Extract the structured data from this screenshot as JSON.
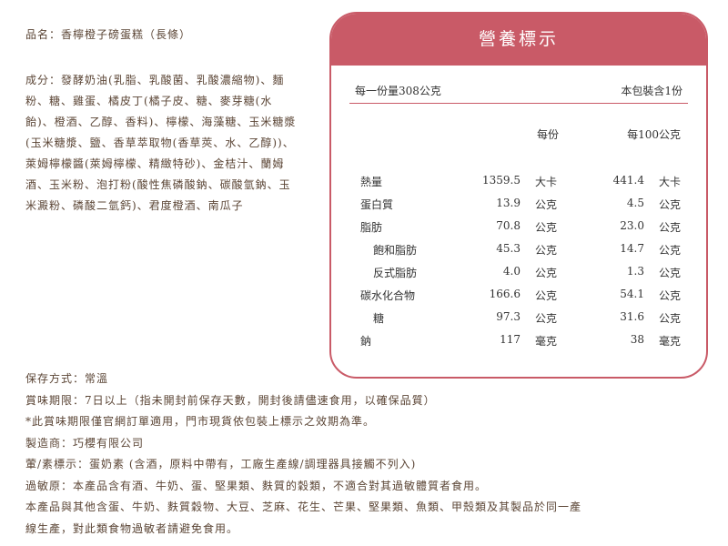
{
  "product_name": "品名：香檸橙子磅蛋糕（長條）",
  "ingredients": "成分：發酵奶油(乳脂、乳酸菌、乳酸濃縮物)、麵粉、糖、雞蛋、橘皮丁(橘子皮、糖、麥芽糖(水飴)、橙酒、乙醇、香料)、檸檬、海藻糖、玉米糖漿(玉米糖漿、鹽、香草萃取物(香草莢、水、乙醇))、萊姆檸檬醬(萊姆檸檬、精緻特砂)、金桔汁、蘭姆酒、玉米粉、泡打粉(酸性焦磷酸鈉、碳酸氫鈉、玉米澱粉、磷酸二氫鈣)、君度橙酒、南瓜子",
  "nutrition": {
    "title": "營養標示",
    "serving_size": "每一份量308公克",
    "servings": "本包裝含1份",
    "col_per_serving": "每份",
    "col_per_100g": "每100公克",
    "accent_color": "#c95a67",
    "rows": [
      {
        "name": "熱量",
        "v1": "1359.5",
        "u1": "大卡",
        "v2": "441.4",
        "u2": "大卡",
        "indent": false
      },
      {
        "name": "蛋白質",
        "v1": "13.9",
        "u1": "公克",
        "v2": "4.5",
        "u2": "公克",
        "indent": false
      },
      {
        "name": "脂肪",
        "v1": "70.8",
        "u1": "公克",
        "v2": "23.0",
        "u2": "公克",
        "indent": false
      },
      {
        "name": "飽和脂肪",
        "v1": "45.3",
        "u1": "公克",
        "v2": "14.7",
        "u2": "公克",
        "indent": true
      },
      {
        "name": "反式脂肪",
        "v1": "4.0",
        "u1": "公克",
        "v2": "1.3",
        "u2": "公克",
        "indent": true
      },
      {
        "name": "碳水化合物",
        "v1": "166.6",
        "u1": "公克",
        "v2": "54.1",
        "u2": "公克",
        "indent": false
      },
      {
        "name": "糖",
        "v1": "97.3",
        "u1": "公克",
        "v2": "31.6",
        "u2": "公克",
        "indent": true
      },
      {
        "name": "鈉",
        "v1": "117",
        "u1": "毫克",
        "v2": "38",
        "u2": "毫克",
        "indent": false
      }
    ]
  },
  "footer": [
    "保存方式：常溫",
    "賞味期限：7日以上（指未開封前保存天數，開封後請儘速食用，以確保品質）",
    "*此賞味期限僅官網訂單適用，門市現貨依包裝上標示之效期為準。",
    "製造商：巧櫻有限公司",
    "葷/素標示：蛋奶素 (含酒，原料中帶有，工廠生產線/調理器具接觸不列入)",
    "過敏原：本產品含有酒、牛奶、蛋、堅果類、麩質的穀類，不適合對其過敏體質者食用。",
    "本產品與其他含蛋、牛奶、麩質穀物、大豆、芝麻、花生、芒果、堅果類、魚類、甲殼類及其製品於同一產",
    "線生產，對此類食物過敏者請避免食用。"
  ]
}
